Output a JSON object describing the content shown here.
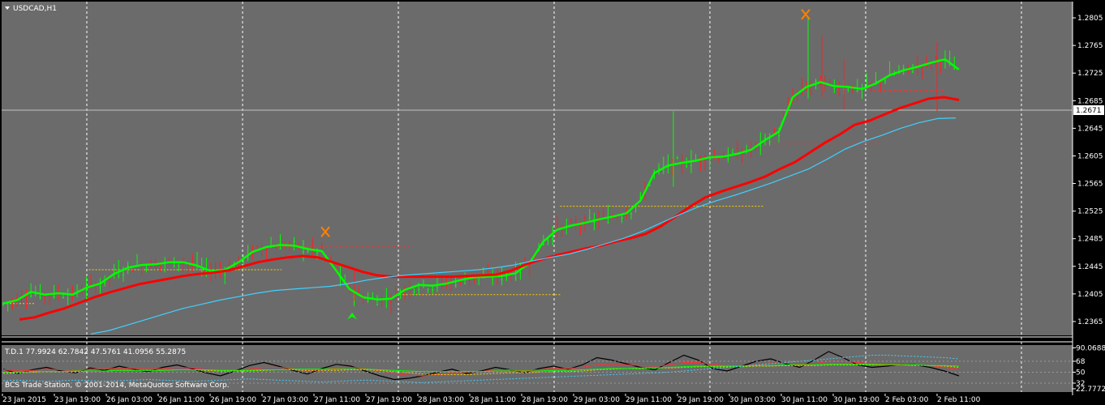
{
  "chart_data": [
    {
      "type": "candlestick",
      "title": "USDCAD,H1",
      "ylim": [
        1.2345,
        1.2825
      ],
      "y_ticks": [
        "1.2805",
        "1.2765",
        "1.2725",
        "1.2685",
        "1.2645",
        "1.2605",
        "1.2565",
        "1.2525",
        "1.2485",
        "1.2445",
        "1.2405",
        "1.2365"
      ],
      "current_price": "1.2671",
      "x_ticks": [
        "23 Jan 2015",
        "23 Jan 19:00",
        "26 Jan 03:00",
        "26 Jan 11:00",
        "26 Jan 19:00",
        "27 Jan 03:00",
        "27 Jan 11:00",
        "27 Jan 19:00",
        "28 Jan 03:00",
        "28 Jan 11:00",
        "28 Jan 19:00",
        "29 Jan 03:00",
        "29 Jan 11:00",
        "29 Jan 19:00",
        "30 Jan 03:00",
        "30 Jan 11:00",
        "30 Jan 19:00",
        "2 Feb 03:00",
        "2 Feb 11:00"
      ],
      "series": [
        {
          "color": "#00ff00",
          "values": [
            1.2391,
            1.2396,
            1.2408,
            1.2404,
            1.2406,
            1.2404,
            1.2414,
            1.242,
            1.2434,
            1.2443,
            1.2447,
            1.2448,
            1.2451,
            1.2451,
            1.2446,
            1.2438,
            1.244,
            1.2451,
            1.2466,
            1.2473,
            1.2476,
            1.2475,
            1.247,
            1.2467,
            1.244,
            1.2412,
            1.24,
            1.2397,
            1.2398,
            1.2411,
            1.2418,
            1.2417,
            1.242,
            1.2425,
            1.2429,
            1.243,
            1.2431,
            1.2435,
            1.245,
            1.2481,
            1.2498,
            1.2504,
            1.2508,
            1.2513,
            1.2517,
            1.2522,
            1.254,
            1.258,
            1.2591,
            1.2595,
            1.2598,
            1.2603,
            1.2604,
            1.2608,
            1.2614,
            1.2628,
            1.264,
            1.269,
            1.2705,
            1.2712,
            1.2706,
            1.2705,
            1.2702,
            1.271,
            1.2722,
            1.2729,
            1.2734,
            1.274,
            1.2745,
            1.273
          ]
        },
        {
          "color": "#ff0000",
          "values": [
            1.2368,
            1.2371,
            1.2378,
            1.2384,
            1.2392,
            1.24,
            1.2407,
            1.2413,
            1.2419,
            1.2423,
            1.2427,
            1.2431,
            1.2434,
            1.2436,
            1.2439,
            1.2445,
            1.2451,
            1.2455,
            1.2458,
            1.246,
            1.2458,
            1.2451,
            1.2444,
            1.2437,
            1.2432,
            1.243,
            1.243,
            1.243,
            1.243,
            1.243,
            1.2431,
            1.2432,
            1.2433,
            1.2439,
            1.2448,
            1.2455,
            1.2461,
            1.2466,
            1.2471,
            1.2475,
            1.2481,
            1.2486,
            1.2492,
            1.2503,
            1.2517,
            1.2532,
            1.2545,
            1.2553,
            1.256,
            1.2567,
            1.2575,
            1.2586,
            1.2596,
            1.261,
            1.2624,
            1.2636,
            1.265,
            1.2656,
            1.2665,
            1.2674,
            1.2681,
            1.2688,
            1.269,
            1.2686
          ]
        },
        {
          "color": "#40d0ff",
          "values": [
            1.2347,
            1.2352,
            1.236,
            1.2368,
            1.2376,
            1.2384,
            1.239,
            1.2396,
            1.2401,
            1.2406,
            1.241,
            1.2412,
            1.2414,
            1.2416,
            1.242,
            1.2425,
            1.2429,
            1.2432,
            1.2434,
            1.2436,
            1.2438,
            1.244,
            1.2443,
            1.2447,
            1.2453,
            1.2458,
            1.2463,
            1.247,
            1.2478,
            1.2486,
            1.2496,
            1.2508,
            1.252,
            1.2531,
            1.254,
            1.2548,
            1.2557,
            1.2566,
            1.2576,
            1.2586,
            1.26,
            1.2615,
            1.2626,
            1.2635,
            1.2645,
            1.2653,
            1.2659,
            1.266
          ]
        }
      ],
      "levels": [
        {
          "color": "#ffd000",
          "value": 1.2391,
          "x_from": 0,
          "x_to": 0.03
        },
        {
          "color": "#ffd000",
          "value": 1.244,
          "x_from": 0.08,
          "x_to": 0.26
        },
        {
          "color": "#ff3030",
          "value": 1.2473,
          "x_from": 0.25,
          "x_to": 0.38
        },
        {
          "color": "#ffd000",
          "value": 1.2404,
          "x_from": 0.37,
          "x_to": 0.52
        },
        {
          "color": "#ffd000",
          "value": 1.2532,
          "x_from": 0.52,
          "x_to": 0.71
        },
        {
          "color": "#ff3030",
          "value": 1.2623,
          "x_from": 0.72,
          "x_to": 0.82
        },
        {
          "color": "#ff3030",
          "value": 1.27,
          "x_from": 0.81,
          "x_to": 0.88
        }
      ]
    },
    {
      "type": "line",
      "title": "T.D.1 77.9924 62.7842 47.5761 41.0956 55.2875",
      "y_ticks": [
        "90.0688",
        "68",
        "50",
        "32",
        "22.7772"
      ],
      "footer": "BCS Trade Station, © 2001-2014, MetaQuotes Software Corp.",
      "series": [
        {
          "color": "#000000",
          "values": [
            55,
            48,
            54,
            58,
            52,
            49,
            57,
            53,
            60,
            55,
            51,
            58,
            62,
            56,
            49,
            44,
            52,
            61,
            66,
            60,
            53,
            47,
            56,
            63,
            60,
            52,
            44,
            38,
            40,
            44,
            50,
            55,
            48,
            52,
            58,
            54,
            49,
            56,
            60,
            55,
            62,
            74,
            70,
            64,
            58,
            54,
            66,
            78,
            70,
            56,
            52,
            60,
            68,
            72,
            64,
            58,
            70,
            84,
            74,
            62,
            58,
            60,
            63,
            62,
            58,
            52,
            44
          ]
        },
        {
          "color": "#ff3030",
          "values": [
            54,
            52,
            53,
            55,
            54,
            53,
            55,
            55,
            57,
            56,
            55,
            56,
            58,
            57,
            54,
            51,
            52,
            55,
            58,
            58,
            56,
            53,
            54,
            57,
            58,
            56,
            52,
            48,
            45,
            44,
            46,
            49,
            50,
            51,
            54,
            54,
            53,
            54,
            56,
            56,
            58,
            62,
            63,
            62,
            61,
            60,
            62,
            66,
            66,
            63,
            60,
            60,
            62,
            65,
            65,
            63,
            64,
            68,
            68,
            66,
            64,
            63,
            63,
            62,
            61,
            58,
            55
          ]
        },
        {
          "color": "#ffd000",
          "values": [
            48,
            49,
            50,
            51,
            51,
            51,
            52,
            52,
            53,
            53,
            53,
            53,
            54,
            54,
            53,
            52,
            52,
            52,
            53,
            54,
            54,
            53,
            53,
            53,
            54,
            54,
            53,
            51,
            49,
            47,
            46,
            46,
            46,
            47,
            48,
            49,
            49,
            50,
            51,
            51,
            52,
            54,
            55,
            56,
            56,
            57,
            57,
            58,
            59,
            59,
            59,
            59,
            60,
            60,
            61,
            61,
            61,
            62,
            62,
            62,
            62,
            62,
            62,
            61,
            61,
            60,
            58
          ]
        },
        {
          "color": "#00ff00",
          "values": [
            50,
            50,
            51,
            51,
            51,
            52,
            52,
            52,
            53,
            53,
            53,
            53,
            54,
            54,
            54,
            53,
            53,
            53,
            54,
            54,
            55,
            55,
            55,
            55,
            55,
            55,
            54,
            53,
            52,
            51,
            51,
            51,
            51,
            51,
            52,
            52,
            52,
            52,
            53,
            53,
            54,
            55,
            56,
            56,
            57,
            57,
            58,
            59,
            60,
            60,
            60,
            60,
            61,
            61,
            62,
            62,
            62,
            63,
            63,
            63,
            63,
            62,
            62,
            62,
            61,
            61,
            60
          ]
        },
        {
          "color": "#40d0ff",
          "values": [
            36,
            37,
            36,
            35,
            36,
            37,
            36,
            35,
            36,
            37,
            38,
            37,
            36,
            35,
            36,
            37,
            38,
            39,
            38,
            37,
            36,
            35,
            34,
            35,
            36,
            37,
            36,
            35,
            34,
            33,
            34,
            35,
            36,
            37,
            38,
            39,
            40,
            41,
            42,
            43,
            44,
            45,
            46,
            47,
            48,
            49,
            50,
            52,
            54,
            56,
            58,
            60,
            62,
            64,
            66,
            68,
            70,
            72,
            74,
            76,
            78,
            78,
            77,
            76,
            75,
            74,
            72
          ]
        }
      ]
    }
  ],
  "colors": {
    "background": "#6b6b6b",
    "axis_text": "#ffffff",
    "vgrid": "#ffffff",
    "price_label_bg": "#ffffff"
  },
  "icons": {
    "title_menu": "triangle-down-icon",
    "arrow_up": "green-arrow-icon",
    "cross_marker": "orange-cross-icon"
  }
}
